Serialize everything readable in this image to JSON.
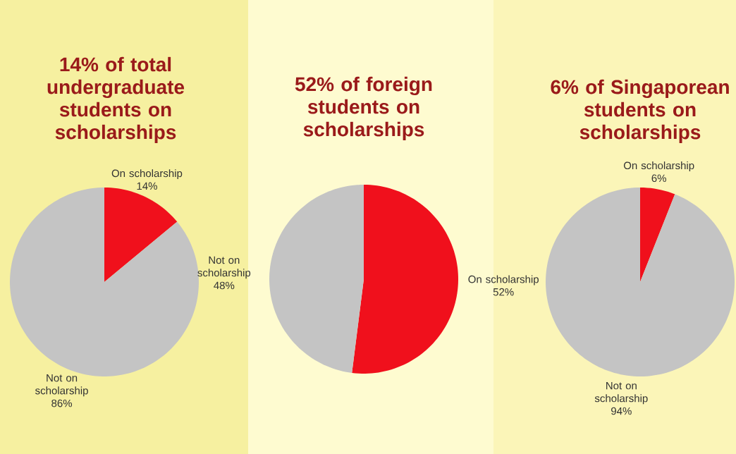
{
  "chart_data": [
    {
      "type": "pie",
      "title": "14% of total undergraduate students on scholarships",
      "categories": [
        "On scholarship",
        "Not on scholarship"
      ],
      "values": [
        14,
        86
      ],
      "colors": [
        "#f0101c",
        "#c4c4c4"
      ],
      "value_labels": [
        "14%",
        "86%"
      ]
    },
    {
      "type": "pie",
      "title": "52% of foreign students on scholarships",
      "categories": [
        "On scholarship",
        "Not on scholarship"
      ],
      "values": [
        52,
        48
      ],
      "colors": [
        "#f0101c",
        "#c4c4c4"
      ],
      "value_labels": [
        "52%",
        "48%"
      ]
    },
    {
      "type": "pie",
      "title": "6% of Singaporean students on scholarships",
      "categories": [
        "On scholarship",
        "Not on scholarship"
      ],
      "values": [
        6,
        94
      ],
      "colors": [
        "#f0101c",
        "#c4c4c4"
      ],
      "value_labels": [
        "6%",
        "94%"
      ]
    }
  ]
}
